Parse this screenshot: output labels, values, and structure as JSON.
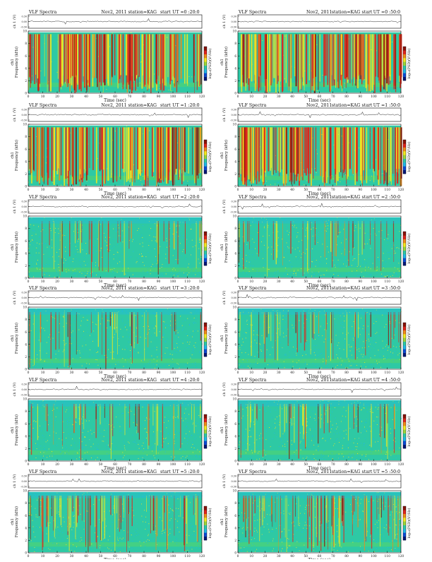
{
  "page": {
    "colors": {
      "background": "#2ec9a4",
      "noise": "#1fb7e8",
      "yellow": "#f4e81e",
      "red": "#e2231a",
      "dark_red": "#8b1208",
      "colorbar": [
        "#04187a",
        "#0a4bd6",
        "#1fb7e8",
        "#2ec9a4",
        "#9ad63a",
        "#f4e81e",
        "#f08a18",
        "#e2231a",
        "#8b1208"
      ]
    }
  },
  "chart_data": [
    {
      "type": "heatmap",
      "header": {
        "title": "VLF Spectra",
        "date": "Nov2, 2011",
        "station": "station=KAG",
        "start_label": "start",
        "start_ut": "UT =0 :20:0"
      },
      "top_panel": {
        "ylabel": "ch 1 (V)",
        "ticks": [
          "0.30",
          "0.00",
          "-0.30"
        ]
      },
      "spectrogram": {
        "ylabel": "Frequency (kHz)",
        "channel_label": "ch1",
        "yticks": [
          "0",
          "2",
          "4",
          "6",
          "8",
          "10"
        ],
        "ylim": [
          0,
          10
        ],
        "activity": "high"
      },
      "xaxis": {
        "label": "Time (sec)",
        "ticks": [
          "0",
          "10",
          "20",
          "30",
          "40",
          "50",
          "60",
          "70",
          "80",
          "90",
          "100",
          "110",
          "120"
        ],
        "xlim": [
          0,
          120
        ]
      },
      "colorbar": {
        "label": "log₁₀(PSD)(V²/Hz)"
      }
    },
    {
      "type": "heatmap",
      "header": {
        "title": "VLF Spectra",
        "date": "Nov2, 2011",
        "station": "station=KAG",
        "start_label": "start",
        "start_ut": "UT =0 :50:0"
      },
      "top_panel": {
        "ylabel": "ch 1 (V)",
        "ticks": [
          "0.30",
          "0.00",
          "-0.30"
        ]
      },
      "spectrogram": {
        "ylabel": "Frequency (kHz)",
        "channel_label": "ch1",
        "yticks": [
          "0",
          "2",
          "4",
          "6",
          "8",
          "10"
        ],
        "ylim": [
          0,
          10
        ],
        "activity": "high"
      },
      "xaxis": {
        "label": "Time (sec)",
        "ticks": [
          "0",
          "10",
          "20",
          "30",
          "40",
          "50",
          "60",
          "70",
          "80",
          "90",
          "100",
          "110",
          "120"
        ],
        "xlim": [
          0,
          120
        ]
      },
      "colorbar": {
        "label": "log₁₀(PSD)(V²/Hz)"
      }
    },
    {
      "type": "heatmap",
      "header": {
        "title": "VLF Spectra",
        "date": "Nov2, 2011",
        "station": "station=KAG",
        "start_label": "start",
        "start_ut": "UT =1 :20:0"
      },
      "top_panel": {
        "ylabel": "ch 1 (V)",
        "ticks": [
          "0.30",
          "0.00",
          "-0.30"
        ]
      },
      "spectrogram": {
        "ylabel": "Frequency (kHz)",
        "channel_label": "ch1",
        "yticks": [
          "0",
          "2",
          "4",
          "6",
          "8",
          "10"
        ],
        "ylim": [
          0,
          10
        ],
        "activity": "high"
      },
      "xaxis": {
        "label": "Time (sec)",
        "ticks": [
          "0",
          "10",
          "20",
          "30",
          "40",
          "50",
          "60",
          "70",
          "80",
          "90",
          "100",
          "110",
          "120"
        ],
        "xlim": [
          0,
          120
        ]
      },
      "colorbar": {
        "label": "log₁₀(PSD)(V²/Hz)"
      }
    },
    {
      "type": "heatmap",
      "header": {
        "title": "VLF Spectra",
        "date": "Nov2, 2011",
        "station": "station=KAG",
        "start_label": "start",
        "start_ut": "UT =1 :50:0"
      },
      "top_panel": {
        "ylabel": "ch 1 (V)",
        "ticks": [
          "0.30",
          "0.00",
          "-0.30"
        ]
      },
      "spectrogram": {
        "ylabel": "Frequency (kHz)",
        "channel_label": "ch1",
        "yticks": [
          "0",
          "2",
          "4",
          "6",
          "8",
          "10"
        ],
        "ylim": [
          0,
          10
        ],
        "activity": "high"
      },
      "xaxis": {
        "label": "Time (sec)",
        "ticks": [
          "0",
          "10",
          "20",
          "30",
          "40",
          "50",
          "60",
          "70",
          "80",
          "90",
          "100",
          "110",
          "120"
        ],
        "xlim": [
          0,
          120
        ]
      },
      "colorbar": {
        "label": "log₁₀(PSD)(V²/Hz)"
      }
    },
    {
      "type": "heatmap",
      "header": {
        "title": "VLF Spectra",
        "date": "Nov2, 2011",
        "station": "station=KAG",
        "start_label": "start",
        "start_ut": "UT =2 :20:0"
      },
      "top_panel": {
        "ylabel": "ch 1 (V)",
        "ticks": [
          "0.30",
          "0.00",
          "-0.30"
        ]
      },
      "spectrogram": {
        "ylabel": "Frequency (kHz)",
        "channel_label": "ch1",
        "yticks": [
          "0",
          "2",
          "4",
          "6",
          "8",
          "10"
        ],
        "ylim": [
          0,
          10
        ],
        "activity": "low"
      },
      "xaxis": {
        "label": "Time (sec)",
        "ticks": [
          "0",
          "10",
          "20",
          "30",
          "40",
          "50",
          "60",
          "70",
          "80",
          "90",
          "100",
          "110",
          "120"
        ],
        "xlim": [
          0,
          120
        ]
      },
      "colorbar": {
        "label": "log₁₀(PSD)(V²/Hz)"
      }
    },
    {
      "type": "heatmap",
      "header": {
        "title": "VLF Spectra",
        "date": "Nov2, 2011",
        "station": "station=KAG",
        "start_label": "start",
        "start_ut": "UT =2 :50:0"
      },
      "top_panel": {
        "ylabel": "ch 1 (V)",
        "ticks": [
          "0.30",
          "0.00",
          "-0.30"
        ]
      },
      "spectrogram": {
        "ylabel": "Frequency (kHz)",
        "channel_label": "ch1",
        "yticks": [
          "0",
          "2",
          "4",
          "6",
          "8",
          "10"
        ],
        "ylim": [
          0,
          10
        ],
        "activity": "low"
      },
      "xaxis": {
        "label": "Time (sec)",
        "ticks": [
          "0",
          "10",
          "20",
          "30",
          "40",
          "50",
          "60",
          "70",
          "80",
          "90",
          "100",
          "110",
          "120"
        ],
        "xlim": [
          0,
          120
        ]
      },
      "colorbar": {
        "label": "log₁₀(PSD)(V²/Hz)"
      }
    },
    {
      "type": "heatmap",
      "header": {
        "title": "VLF Spectra",
        "date": "Nov2, 2011",
        "station": "station=KAG",
        "start_label": "start",
        "start_ut": "UT =3 :20:0"
      },
      "top_panel": {
        "ylabel": "ch 1 (V)",
        "ticks": [
          "0.30",
          "0.00",
          "-0.30"
        ]
      },
      "spectrogram": {
        "ylabel": "Frequency (kHz)",
        "channel_label": "ch1",
        "yticks": [
          "0",
          "2",
          "4",
          "6",
          "8",
          "10"
        ],
        "ylim": [
          0,
          10
        ],
        "activity": "low"
      },
      "xaxis": {
        "label": "Time (sec)",
        "ticks": [
          "0",
          "10",
          "20",
          "30",
          "40",
          "50",
          "60",
          "70",
          "80",
          "90",
          "100",
          "110",
          "120"
        ],
        "xlim": [
          0,
          120
        ]
      },
      "colorbar": {
        "label": "log₁₀(PSD)(V²/Hz)"
      }
    },
    {
      "type": "heatmap",
      "header": {
        "title": "VLF Spectra",
        "date": "Nov2, 2011",
        "station": "station=KAG",
        "start_label": "start",
        "start_ut": "UT =3 :50:0"
      },
      "top_panel": {
        "ylabel": "ch 1 (V)",
        "ticks": [
          "0.30",
          "0.00",
          "-0.30"
        ]
      },
      "spectrogram": {
        "ylabel": "Frequency (kHz)",
        "channel_label": "ch1",
        "yticks": [
          "0",
          "2",
          "4",
          "6",
          "8",
          "10"
        ],
        "ylim": [
          0,
          10
        ],
        "activity": "low"
      },
      "xaxis": {
        "label": "Time (sec)",
        "ticks": [
          "0",
          "10",
          "20",
          "30",
          "40",
          "50",
          "60",
          "70",
          "80",
          "90",
          "100",
          "110",
          "120"
        ],
        "xlim": [
          0,
          120
        ]
      },
      "colorbar": {
        "label": "log₁₀(PSD)(V²/Hz)"
      }
    },
    {
      "type": "heatmap",
      "header": {
        "title": "VLF Spectra",
        "date": "Nov2, 2011",
        "station": "station=KAG",
        "start_label": "start",
        "start_ut": "UT =4 :20:0"
      },
      "top_panel": {
        "ylabel": "ch 1 (V)",
        "ticks": [
          "0.30",
          "0.00",
          "-0.30"
        ]
      },
      "spectrogram": {
        "ylabel": "Frequency (kHz)",
        "channel_label": "ch1",
        "yticks": [
          "0",
          "2",
          "4",
          "6",
          "8",
          "10"
        ],
        "ylim": [
          0,
          10
        ],
        "activity": "low"
      },
      "xaxis": {
        "label": "Time (sec)",
        "ticks": [
          "0",
          "10",
          "20",
          "30",
          "40",
          "50",
          "60",
          "70",
          "80",
          "90",
          "100",
          "110",
          "120"
        ],
        "xlim": [
          0,
          120
        ]
      },
      "colorbar": {
        "label": "log₁₀(PSD)(V²/Hz)"
      }
    },
    {
      "type": "heatmap",
      "header": {
        "title": "VLF Spectra",
        "date": "Nov2, 2011",
        "station": "station=KAG",
        "start_label": "start",
        "start_ut": "UT =4 :50:0"
      },
      "top_panel": {
        "ylabel": "ch 1 (V)",
        "ticks": [
          "0.30",
          "0.00",
          "-0.30"
        ]
      },
      "spectrogram": {
        "ylabel": "Frequency (kHz)",
        "channel_label": "ch1",
        "yticks": [
          "0",
          "2",
          "4",
          "6",
          "8",
          "10"
        ],
        "ylim": [
          0,
          10
        ],
        "activity": "low"
      },
      "xaxis": {
        "label": "Time (sec)",
        "ticks": [
          "0",
          "10",
          "20",
          "30",
          "40",
          "50",
          "60",
          "70",
          "80",
          "90",
          "100",
          "110",
          "120"
        ],
        "xlim": [
          0,
          120
        ]
      },
      "colorbar": {
        "label": "log₁₀(PSD)(V²/Hz)"
      }
    },
    {
      "type": "heatmap",
      "header": {
        "title": "VLF Spectra",
        "date": "Nov2, 2011",
        "station": "station=KAG",
        "start_label": "start",
        "start_ut": "UT =5 :20:0"
      },
      "top_panel": {
        "ylabel": "ch 1 (V)",
        "ticks": [
          "0.30",
          "0.00",
          "-0.30"
        ]
      },
      "spectrogram": {
        "ylabel": "Frequency (kHz)",
        "channel_label": "ch1",
        "yticks": [
          "0",
          "2",
          "4",
          "6",
          "8",
          "10"
        ],
        "ylim": [
          0,
          10
        ],
        "activity": "medium"
      },
      "xaxis": {
        "label": "Time (sec)",
        "ticks": [
          "0",
          "10",
          "20",
          "30",
          "40",
          "50",
          "60",
          "70",
          "80",
          "90",
          "100",
          "110",
          "120"
        ],
        "xlim": [
          0,
          120
        ]
      },
      "colorbar": {
        "label": "log₁₀(PSD)(V²/Hz)"
      }
    },
    {
      "type": "heatmap",
      "header": {
        "title": "VLF Spectra",
        "date": "Nov2, 2011",
        "station": "station=KAG",
        "start_label": "start",
        "start_ut": "UT =5 :50:0"
      },
      "top_panel": {
        "ylabel": "ch 1 (V)",
        "ticks": [
          "0.30",
          "0.00",
          "-0.30"
        ]
      },
      "spectrogram": {
        "ylabel": "Frequency (kHz)",
        "channel_label": "ch1",
        "yticks": [
          "0",
          "2",
          "4",
          "6",
          "8",
          "10"
        ],
        "ylim": [
          0,
          10
        ],
        "activity": "medium"
      },
      "xaxis": {
        "label": "Time (sec)",
        "ticks": [
          "0",
          "10",
          "20",
          "30",
          "40",
          "50",
          "60",
          "70",
          "80",
          "90",
          "100",
          "110",
          "120"
        ],
        "xlim": [
          0,
          120
        ]
      },
      "colorbar": {
        "label": "log₁₀(PSD)(V²/Hz)"
      }
    }
  ]
}
